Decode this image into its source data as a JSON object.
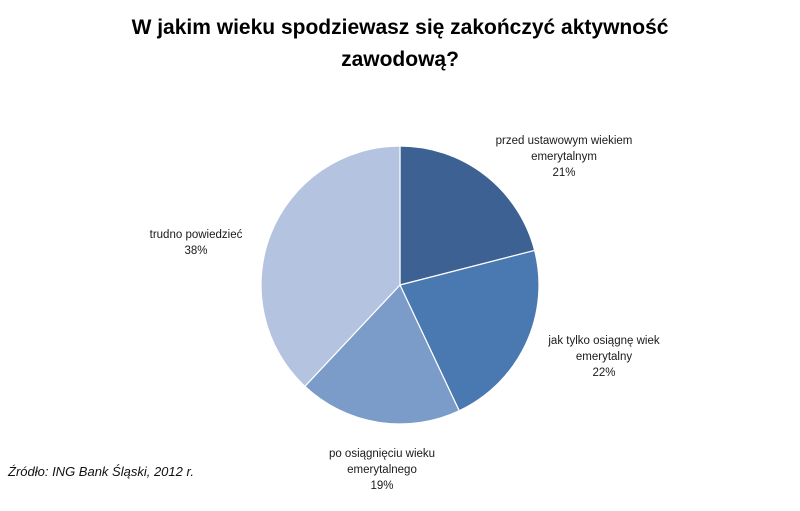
{
  "chart_data": {
    "type": "pie",
    "title_lines": [
      "W jakim wieku spodziewasz się zakończyć aktywność",
      "zawodową?"
    ],
    "slices": [
      {
        "label_lines": [
          "przed ustawowym  wiekiem",
          "emerytalnym"
        ],
        "value_label": "21%",
        "value": 21,
        "color": "#3c6192"
      },
      {
        "label_lines": [
          "jak tylko osiągnę wiek",
          "emerytalny"
        ],
        "value_label": "22%",
        "value": 22,
        "color": "#4a78b0"
      },
      {
        "label_lines": [
          "po osiągnięciu wieku",
          "emerytalnego"
        ],
        "value_label": "19%",
        "value": 19,
        "color": "#7b9bc8"
      },
      {
        "label_lines": [
          "trudno powiedzieć"
        ],
        "value_label": "38%",
        "value": 38,
        "color": "#b4c3df"
      }
    ]
  },
  "source_note": "Źródło: ING Bank Śląski, 2012 r."
}
